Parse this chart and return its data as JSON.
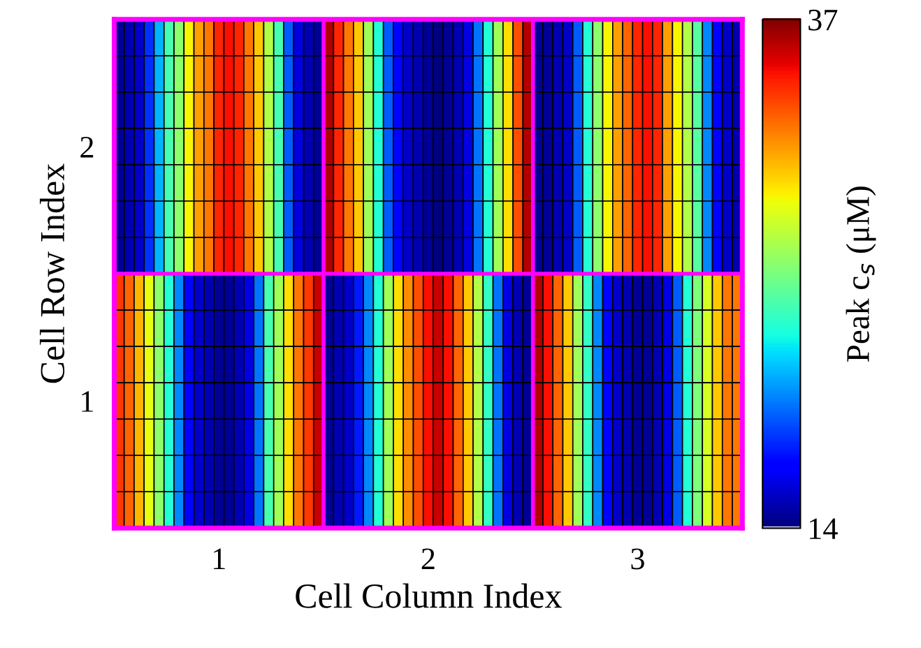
{
  "chart_data": {
    "type": "heatmap",
    "xlabel": "Cell Column Index",
    "ylabel": "Cell Row Index",
    "clabel": "Peak c$_{s}$ (μM)",
    "clim": [
      14,
      37
    ],
    "cticks": [
      14,
      37
    ],
    "categories": [
      null,
      null,
      null,
      null,
      null,
      null,
      null,
      null,
      null,
      null,
      "1",
      null,
      null,
      null,
      null,
      null,
      null,
      null,
      null,
      null,
      null,
      null,
      null,
      null,
      null,
      null,
      null,
      null,
      null,
      null,
      null,
      "2",
      null,
      null,
      null,
      null,
      null,
      null,
      null,
      null,
      null,
      null,
      null,
      null,
      null,
      null,
      null,
      null,
      null,
      null,
      null,
      null,
      "3",
      null,
      null,
      null,
      null,
      null,
      null,
      null,
      null,
      null,
      null
    ],
    "y_categories": [
      null,
      null,
      null,
      "2",
      null,
      null,
      null,
      null,
      null,
      null,
      "1",
      null,
      null,
      null
    ],
    "cells": [
      [
        14.5,
        15,
        15.5,
        18,
        21,
        24,
        26,
        29,
        31,
        32,
        34,
        34.5,
        34,
        32,
        30,
        27,
        24,
        19,
        16,
        15,
        14.5,
        36,
        34,
        32,
        30,
        26.5,
        23,
        19,
        17,
        15.5,
        15,
        14.5,
        14,
        14.5,
        15,
        16,
        19.5,
        23,
        26.5,
        29.5,
        33,
        36,
        14.5,
        14.5,
        15,
        15.5,
        19,
        23,
        26,
        29,
        31,
        32.5,
        34,
        34.5,
        34,
        31,
        29,
        27,
        24.5,
        20,
        17,
        15.5,
        15
      ],
      [
        14.5,
        15,
        15.5,
        18,
        21,
        24,
        26,
        29,
        31,
        32,
        34,
        34.5,
        34,
        32,
        30,
        27,
        24,
        19,
        16,
        15,
        14.5,
        36,
        34,
        32,
        30,
        26.5,
        23,
        19,
        17,
        15.5,
        15,
        14.5,
        14,
        14.5,
        15,
        16,
        19.5,
        23,
        26.5,
        29.5,
        33,
        36,
        14.5,
        14.5,
        15,
        15.5,
        19,
        23,
        26,
        29,
        31,
        32.5,
        34,
        34.5,
        34,
        31,
        29,
        27,
        24.5,
        20,
        17,
        15.5,
        15
      ],
      [
        14.5,
        15,
        15.5,
        18,
        21,
        24,
        26,
        29,
        31,
        32,
        34,
        34.5,
        34,
        32,
        30,
        27,
        24,
        19,
        16,
        15,
        14.5,
        36,
        34,
        32,
        30,
        26.5,
        23,
        19,
        17,
        15.5,
        15,
        14.5,
        14,
        14.5,
        15,
        16,
        19.5,
        23,
        26.5,
        29.5,
        33,
        36,
        14.5,
        14.5,
        15,
        15.5,
        19,
        23,
        26,
        29,
        31,
        32.5,
        34,
        34.5,
        34,
        31,
        29,
        27,
        24.5,
        20,
        17,
        15.5,
        15
      ],
      [
        14.5,
        15,
        15.5,
        18,
        21,
        24,
        26,
        29,
        31,
        32,
        34,
        34.5,
        34,
        32,
        30,
        27,
        24,
        19,
        16,
        15,
        14.5,
        36,
        34,
        32,
        30,
        26.5,
        23,
        19,
        17,
        15.5,
        15,
        14.5,
        14,
        14.5,
        15,
        16,
        19.5,
        23,
        26.5,
        29.5,
        33,
        36,
        14.5,
        14.5,
        15,
        15.5,
        19,
        23,
        26,
        29,
        31,
        32.5,
        34,
        34.5,
        34,
        31,
        29,
        27,
        24.5,
        20,
        17,
        15.5,
        15
      ],
      [
        14.5,
        15,
        15.5,
        18,
        21,
        24,
        26,
        29,
        31,
        32,
        34,
        34.5,
        34,
        32,
        30,
        27,
        24,
        19,
        16,
        15,
        14.5,
        36,
        34,
        32,
        30,
        26.5,
        23,
        19,
        17,
        15.5,
        15,
        14.5,
        14,
        14.5,
        15,
        16,
        19.5,
        23,
        26.5,
        29.5,
        33,
        36,
        14.5,
        14.5,
        15,
        15.5,
        19,
        23,
        26,
        29,
        31,
        32.5,
        34,
        34.5,
        34,
        31,
        29,
        27,
        24.5,
        20,
        17,
        15.5,
        15
      ],
      [
        14.5,
        15,
        15.5,
        18,
        21,
        24,
        26,
        29,
        31,
        32,
        34,
        34.5,
        34,
        32,
        30,
        27,
        24,
        19,
        16,
        15,
        14.5,
        36,
        34,
        32,
        30,
        26.5,
        23,
        19,
        17,
        15.5,
        15,
        14.5,
        14,
        14.5,
        15,
        16,
        19.5,
        23,
        26.5,
        29.5,
        33,
        36,
        14.5,
        14.5,
        15,
        15.5,
        19,
        23,
        26,
        29,
        31,
        32.5,
        34,
        34.5,
        34,
        31,
        29,
        27,
        24.5,
        20,
        17,
        15.5,
        15
      ],
      [
        14.5,
        15,
        15.5,
        18,
        21,
        24,
        26,
        29,
        31,
        32,
        34,
        34.5,
        34,
        32,
        30,
        27,
        24,
        19,
        16,
        15,
        14.5,
        36,
        34,
        32,
        30,
        26.5,
        23,
        19,
        17,
        15.5,
        15,
        14.5,
        14,
        14.5,
        15,
        16,
        19.5,
        23,
        26.5,
        29.5,
        33,
        36,
        14.5,
        14.5,
        15,
        15.5,
        19,
        23,
        26,
        29,
        31,
        32.5,
        34,
        34.5,
        34,
        31,
        29,
        27,
        24.5,
        20,
        17,
        15.5,
        15
      ],
      [
        33.5,
        32.5,
        30.5,
        28.5,
        26,
        23,
        20,
        17,
        15.5,
        15,
        14.5,
        14.5,
        15,
        16,
        19.5,
        24,
        26.5,
        29.5,
        32,
        33.5,
        35.5,
        14.5,
        15,
        15.5,
        17.5,
        20,
        23,
        26.5,
        29.5,
        31.5,
        33,
        34.5,
        35.5,
        34.5,
        32.5,
        30,
        27,
        23.5,
        19.5,
        16,
        15,
        14.5,
        36,
        34.5,
        32.5,
        30,
        26.5,
        23.5,
        20,
        17,
        15.5,
        15,
        14.5,
        14.5,
        15,
        16,
        19,
        23,
        25.5,
        28,
        30,
        32,
        32
      ],
      [
        33.5,
        32.5,
        30.5,
        28.5,
        26,
        23,
        20,
        17,
        15.5,
        15,
        14.5,
        14.5,
        15,
        16,
        19.5,
        24,
        26.5,
        29.5,
        32,
        33.5,
        35.5,
        14.5,
        15,
        15.5,
        17.5,
        20,
        23,
        26.5,
        29.5,
        31.5,
        33,
        34.5,
        35.5,
        34.5,
        32.5,
        30,
        27,
        23.5,
        19.5,
        16,
        15,
        14.5,
        36,
        34.5,
        32.5,
        30,
        26.5,
        23.5,
        20,
        17,
        15.5,
        15,
        14.5,
        14.5,
        15,
        16,
        19,
        23,
        25.5,
        28,
        30,
        32,
        32
      ],
      [
        33.5,
        32.5,
        30.5,
        28.5,
        26,
        23,
        20,
        17,
        15.5,
        15,
        14.5,
        14.5,
        15,
        16,
        19.5,
        24,
        26.5,
        29.5,
        32,
        33.5,
        35.5,
        14.5,
        15,
        15.5,
        17.5,
        20,
        23,
        26.5,
        29.5,
        31.5,
        33,
        34.5,
        35.5,
        34.5,
        32.5,
        30,
        27,
        23.5,
        19.5,
        16,
        15,
        14.5,
        36,
        34.5,
        32.5,
        30,
        26.5,
        23.5,
        20,
        17,
        15.5,
        15,
        14.5,
        14.5,
        15,
        16,
        19,
        23,
        25.5,
        28,
        30,
        32,
        32
      ],
      [
        33.5,
        32.5,
        30.5,
        28.5,
        26,
        23,
        20,
        17,
        15.5,
        15,
        14.5,
        14.5,
        15,
        16,
        19.5,
        24,
        26.5,
        29.5,
        32,
        33.5,
        35.5,
        14.5,
        15,
        15.5,
        17.5,
        20,
        23,
        26.5,
        29.5,
        31.5,
        33,
        34.5,
        35.5,
        34.5,
        32.5,
        30,
        27,
        23.5,
        19.5,
        16,
        15,
        14.5,
        36,
        34.5,
        32.5,
        30,
        26.5,
        23.5,
        20,
        17,
        15.5,
        15,
        14.5,
        14.5,
        15,
        16,
        19,
        23,
        25.5,
        28,
        30,
        32,
        32
      ],
      [
        33.5,
        32.5,
        30.5,
        28.5,
        26,
        23,
        20,
        17,
        15.5,
        15,
        14.5,
        14.5,
        15,
        16,
        19.5,
        24,
        26.5,
        29.5,
        32,
        33.5,
        35.5,
        14.5,
        15,
        15.5,
        17.5,
        20,
        23,
        26.5,
        29.5,
        31.5,
        33,
        34.5,
        35.5,
        34.5,
        32.5,
        30,
        27,
        23.5,
        19.5,
        16,
        15,
        14.5,
        36,
        34.5,
        32.5,
        30,
        26.5,
        23.5,
        20,
        17,
        15.5,
        15,
        14.5,
        14.5,
        15,
        16,
        19,
        23,
        25.5,
        28,
        30,
        32,
        32
      ],
      [
        33.5,
        32.5,
        30.5,
        28.5,
        26,
        23,
        20,
        17,
        15.5,
        15,
        14.5,
        14.5,
        15,
        16,
        19.5,
        24,
        26.5,
        29.5,
        32,
        33.5,
        35.5,
        14.5,
        15,
        15.5,
        17.5,
        20,
        23,
        26.5,
        29.5,
        31.5,
        33,
        34.5,
        35.5,
        34.5,
        32.5,
        30,
        27,
        23.5,
        19.5,
        16,
        15,
        14.5,
        36,
        34.5,
        32.5,
        30,
        26.5,
        23.5,
        20,
        17,
        15.5,
        15,
        14.5,
        14.5,
        15,
        16,
        19,
        23,
        25.5,
        28,
        30,
        32,
        32
      ],
      [
        33.5,
        32.5,
        30.5,
        28.5,
        26,
        23,
        20,
        17,
        15.5,
        15,
        14.5,
        14.5,
        15,
        16,
        19.5,
        24,
        26.5,
        29.5,
        32,
        33.5,
        35.5,
        14.5,
        15,
        15.5,
        17.5,
        20,
        23,
        26.5,
        29.5,
        31.5,
        33,
        34.5,
        35.5,
        34.5,
        32.5,
        30,
        27,
        23.5,
        19.5,
        16,
        15,
        14.5,
        36,
        34.5,
        32.5,
        30,
        26.5,
        23.5,
        20,
        17,
        15.5,
        15,
        14.5,
        14.5,
        15,
        16,
        19,
        23,
        25.5,
        28,
        30,
        32,
        32
      ]
    ]
  }
}
